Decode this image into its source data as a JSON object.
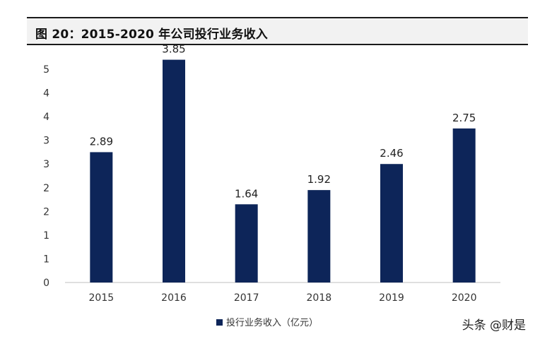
{
  "header": {
    "title": "图 20：2015-2020 年公司投行业务收入"
  },
  "chart_data": {
    "type": "bar",
    "categories": [
      "2015",
      "2016",
      "2017",
      "2018",
      "2019",
      "2020"
    ],
    "series": [
      {
        "name": "投行业务收入（亿元）",
        "values": [
          2.89,
          3.85,
          1.64,
          1.92,
          2.46,
          2.75
        ],
        "display_values": [
          2.75,
          4.7,
          1.65,
          1.95,
          2.5,
          3.25
        ],
        "labels": [
          "2.89",
          "3.85",
          "1.64",
          "1.92",
          "2.46",
          "2.75"
        ]
      }
    ],
    "y_ticks": [
      "0",
      "1",
      "1",
      "2",
      "2",
      "3",
      "3",
      "4",
      "4",
      "5"
    ],
    "ylim": [
      0,
      4.5
    ],
    "color": "#0d2559",
    "grid": false,
    "legend_position": "bottom"
  },
  "legend": {
    "label": "投行业务收入（亿元）"
  },
  "watermark": {
    "text": "头条 @财是"
  }
}
